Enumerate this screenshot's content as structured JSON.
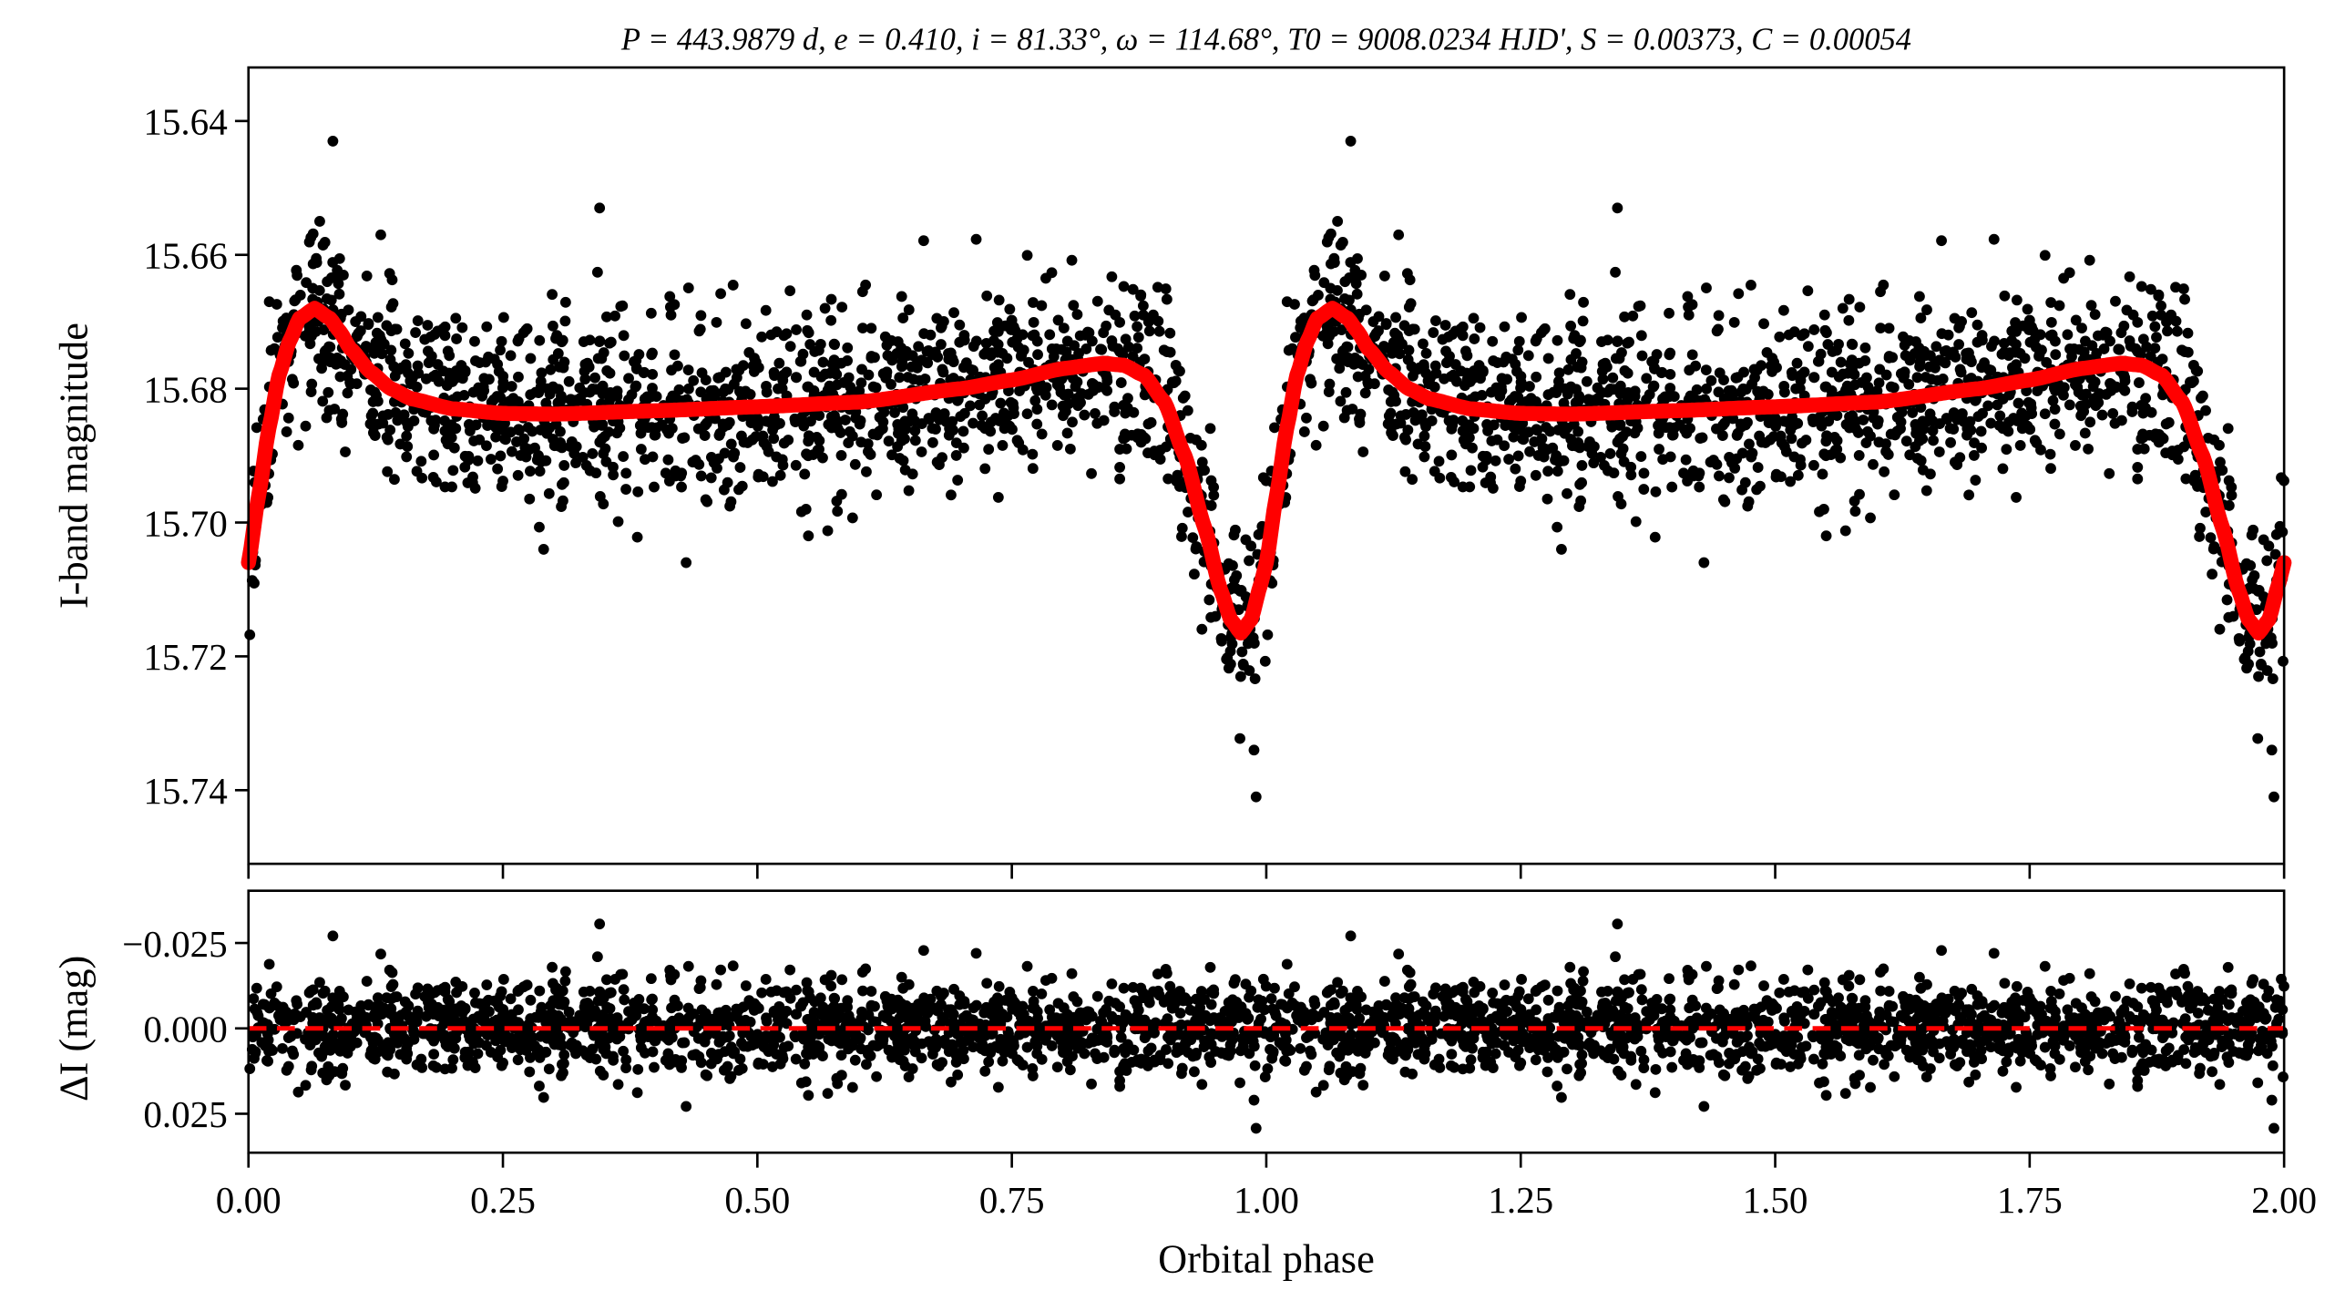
{
  "chart_data": [
    {
      "type": "scatter",
      "panel": "light-curve",
      "title": "P = 443.9879 d, e = 0.410, i = 81.33°, ω = 114.68°, T0 = 9008.0234 HJD', S = 0.00373, C = 0.00054",
      "xlabel": "Orbital phase",
      "ylabel": "I-band magnitude",
      "xlim": [
        0,
        2
      ],
      "ylim": [
        15.751,
        15.632
      ],
      "y_inverted": true,
      "yticks": [
        "15.64",
        "15.66",
        "15.68",
        "15.70",
        "15.72",
        "15.74"
      ],
      "xticks": [
        "0.00",
        "0.25",
        "0.50",
        "0.75",
        "1.00",
        "1.25",
        "1.50",
        "1.75",
        "2.00"
      ],
      "phase_repeated_twice": true,
      "series": [
        {
          "name": "observations",
          "color": "#000000",
          "marker": "circle",
          "n_points": 1500,
          "noise_sigma_mag": 0.0068,
          "seed": 12345,
          "outliers": [
            [
              0.083,
              15.643
            ],
            [
              0.345,
              15.653
            ],
            [
              0.07,
              15.655
            ],
            [
              0.13,
              15.657
            ],
            [
              0.988,
              15.734
            ],
            [
              0.99,
              15.741
            ],
            [
              0.29,
              15.704
            ],
            [
              0.43,
              15.706
            ]
          ]
        },
        {
          "name": "model",
          "color": "#ff0000",
          "style": "solid",
          "phase": [
            0.0,
            0.01,
            0.02,
            0.03,
            0.04,
            0.05,
            0.065,
            0.08,
            0.09,
            0.1,
            0.12,
            0.14,
            0.16,
            0.2,
            0.25,
            0.3,
            0.4,
            0.5,
            0.6,
            0.7,
            0.75,
            0.8,
            0.84,
            0.86,
            0.88,
            0.9,
            0.92,
            0.94,
            0.955,
            0.965,
            0.975,
            0.985,
            0.995,
            1.0
          ],
          "mag": [
            15.706,
            15.696,
            15.686,
            15.678,
            15.673,
            15.6695,
            15.668,
            15.6695,
            15.6715,
            15.674,
            15.6775,
            15.68,
            15.6815,
            15.683,
            15.6837,
            15.6838,
            15.6833,
            15.6827,
            15.682,
            15.68,
            15.6787,
            15.677,
            15.6762,
            15.6765,
            15.678,
            15.682,
            15.69,
            15.701,
            15.71,
            15.7145,
            15.7165,
            15.7145,
            15.709,
            15.706
          ]
        }
      ]
    },
    {
      "type": "scatter",
      "panel": "residuals",
      "xlabel": "Orbital phase",
      "ylabel": "ΔI (mag)",
      "xlim": [
        0,
        2
      ],
      "ylim": [
        0.0364,
        -0.0403
      ],
      "y_inverted": true,
      "yticks": [
        {
          "value": -0.025,
          "label": "−0.025"
        },
        {
          "value": 0.0,
          "label": "0.000"
        },
        {
          "value": 0.025,
          "label": "0.025"
        }
      ],
      "series": [
        {
          "name": "residuals",
          "color": "#000000",
          "marker": "circle"
        },
        {
          "name": "zero-line",
          "color": "#ff0000",
          "style": "dashed",
          "value": 0.0
        }
      ]
    }
  ]
}
